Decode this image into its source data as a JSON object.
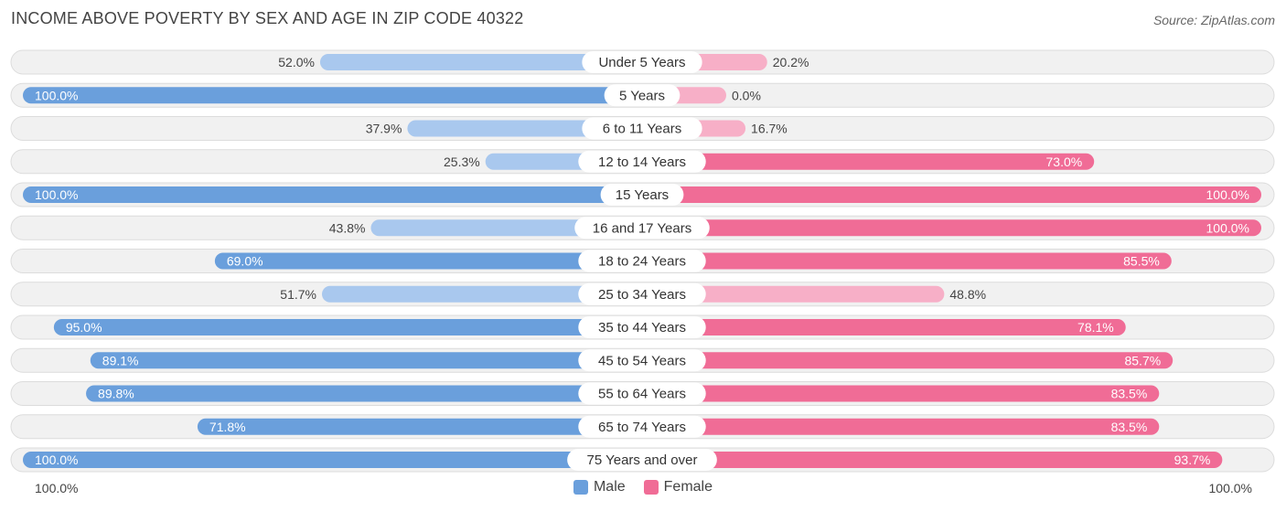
{
  "title": "INCOME ABOVE POVERTY BY SEX AND AGE IN ZIP CODE 40322",
  "source": "Source: ZipAtlas.com",
  "colors": {
    "male_strong": "#6a9fdc",
    "male_light": "#a9c8ee",
    "female_strong": "#f06c96",
    "female_light": "#f7afc7",
    "row_bg": "#f1f1f1",
    "row_border": "#dcdcdc"
  },
  "legend": {
    "male": "Male",
    "female": "Female"
  },
  "axis": {
    "left_label": "100.0%",
    "right_label": "100.0%"
  },
  "chart_data": {
    "type": "bar",
    "orientation": "horizontal-diverging",
    "title": "INCOME ABOVE POVERTY BY SEX AND AGE IN ZIP CODE 40322",
    "xlim": [
      0,
      100
    ],
    "unit": "%",
    "categories": [
      "Under 5 Years",
      "5 Years",
      "6 to 11 Years",
      "12 to 14 Years",
      "15 Years",
      "16 and 17 Years",
      "18 to 24 Years",
      "25 to 34 Years",
      "35 to 44 Years",
      "45 to 54 Years",
      "55 to 64 Years",
      "65 to 74 Years",
      "75 Years and over"
    ],
    "series": [
      {
        "name": "Male",
        "side": "left",
        "values": [
          52.0,
          100.0,
          37.9,
          25.3,
          100.0,
          43.8,
          69.0,
          51.7,
          95.0,
          89.1,
          89.8,
          71.8,
          100.0
        ],
        "labels": [
          "52.0%",
          "100.0%",
          "37.9%",
          "25.3%",
          "100.0%",
          "43.8%",
          "69.0%",
          "51.7%",
          "95.0%",
          "89.1%",
          "89.8%",
          "71.8%",
          "100.0%"
        ]
      },
      {
        "name": "Female",
        "side": "right",
        "values": [
          20.2,
          0.0,
          16.7,
          73.0,
          100.0,
          100.0,
          85.5,
          48.8,
          78.1,
          85.7,
          83.5,
          83.5,
          93.7
        ],
        "labels": [
          "20.2%",
          "0.0%",
          "16.7%",
          "73.0%",
          "100.0%",
          "100.0%",
          "85.5%",
          "48.8%",
          "78.1%",
          "85.7%",
          "83.5%",
          "83.5%",
          "93.7%"
        ]
      }
    ]
  }
}
